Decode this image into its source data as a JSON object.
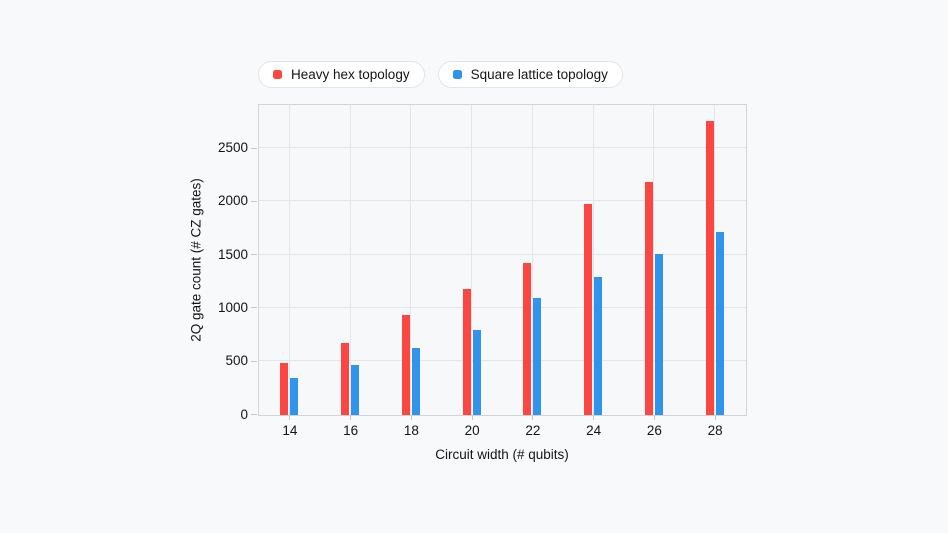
{
  "chart_data": {
    "type": "bar",
    "title": "",
    "xlabel": "Circuit width (# qubits)",
    "ylabel": "2Q gate count (# CZ gates)",
    "categories": [
      "14",
      "16",
      "18",
      "20",
      "22",
      "24",
      "26",
      "28"
    ],
    "series": [
      {
        "name": "Heavy hex topology",
        "color": "#fc4641",
        "values": [
          490,
          680,
          935,
          1180,
          1425,
          1985,
          2185,
          2760
        ]
      },
      {
        "name": "Square lattice topology",
        "color": "#3094eb",
        "values": [
          345,
          465,
          630,
          800,
          1100,
          1295,
          1510,
          1715
        ]
      }
    ],
    "ylim": [
      0,
      2900
    ],
    "yticks": [
      0,
      500,
      1000,
      1500,
      2000,
      2500
    ],
    "grid": true,
    "legend_position": "top",
    "background_color": "#f8f9fa",
    "grid_color": "#e4e5ea",
    "frame_color": "#d2d4da"
  }
}
